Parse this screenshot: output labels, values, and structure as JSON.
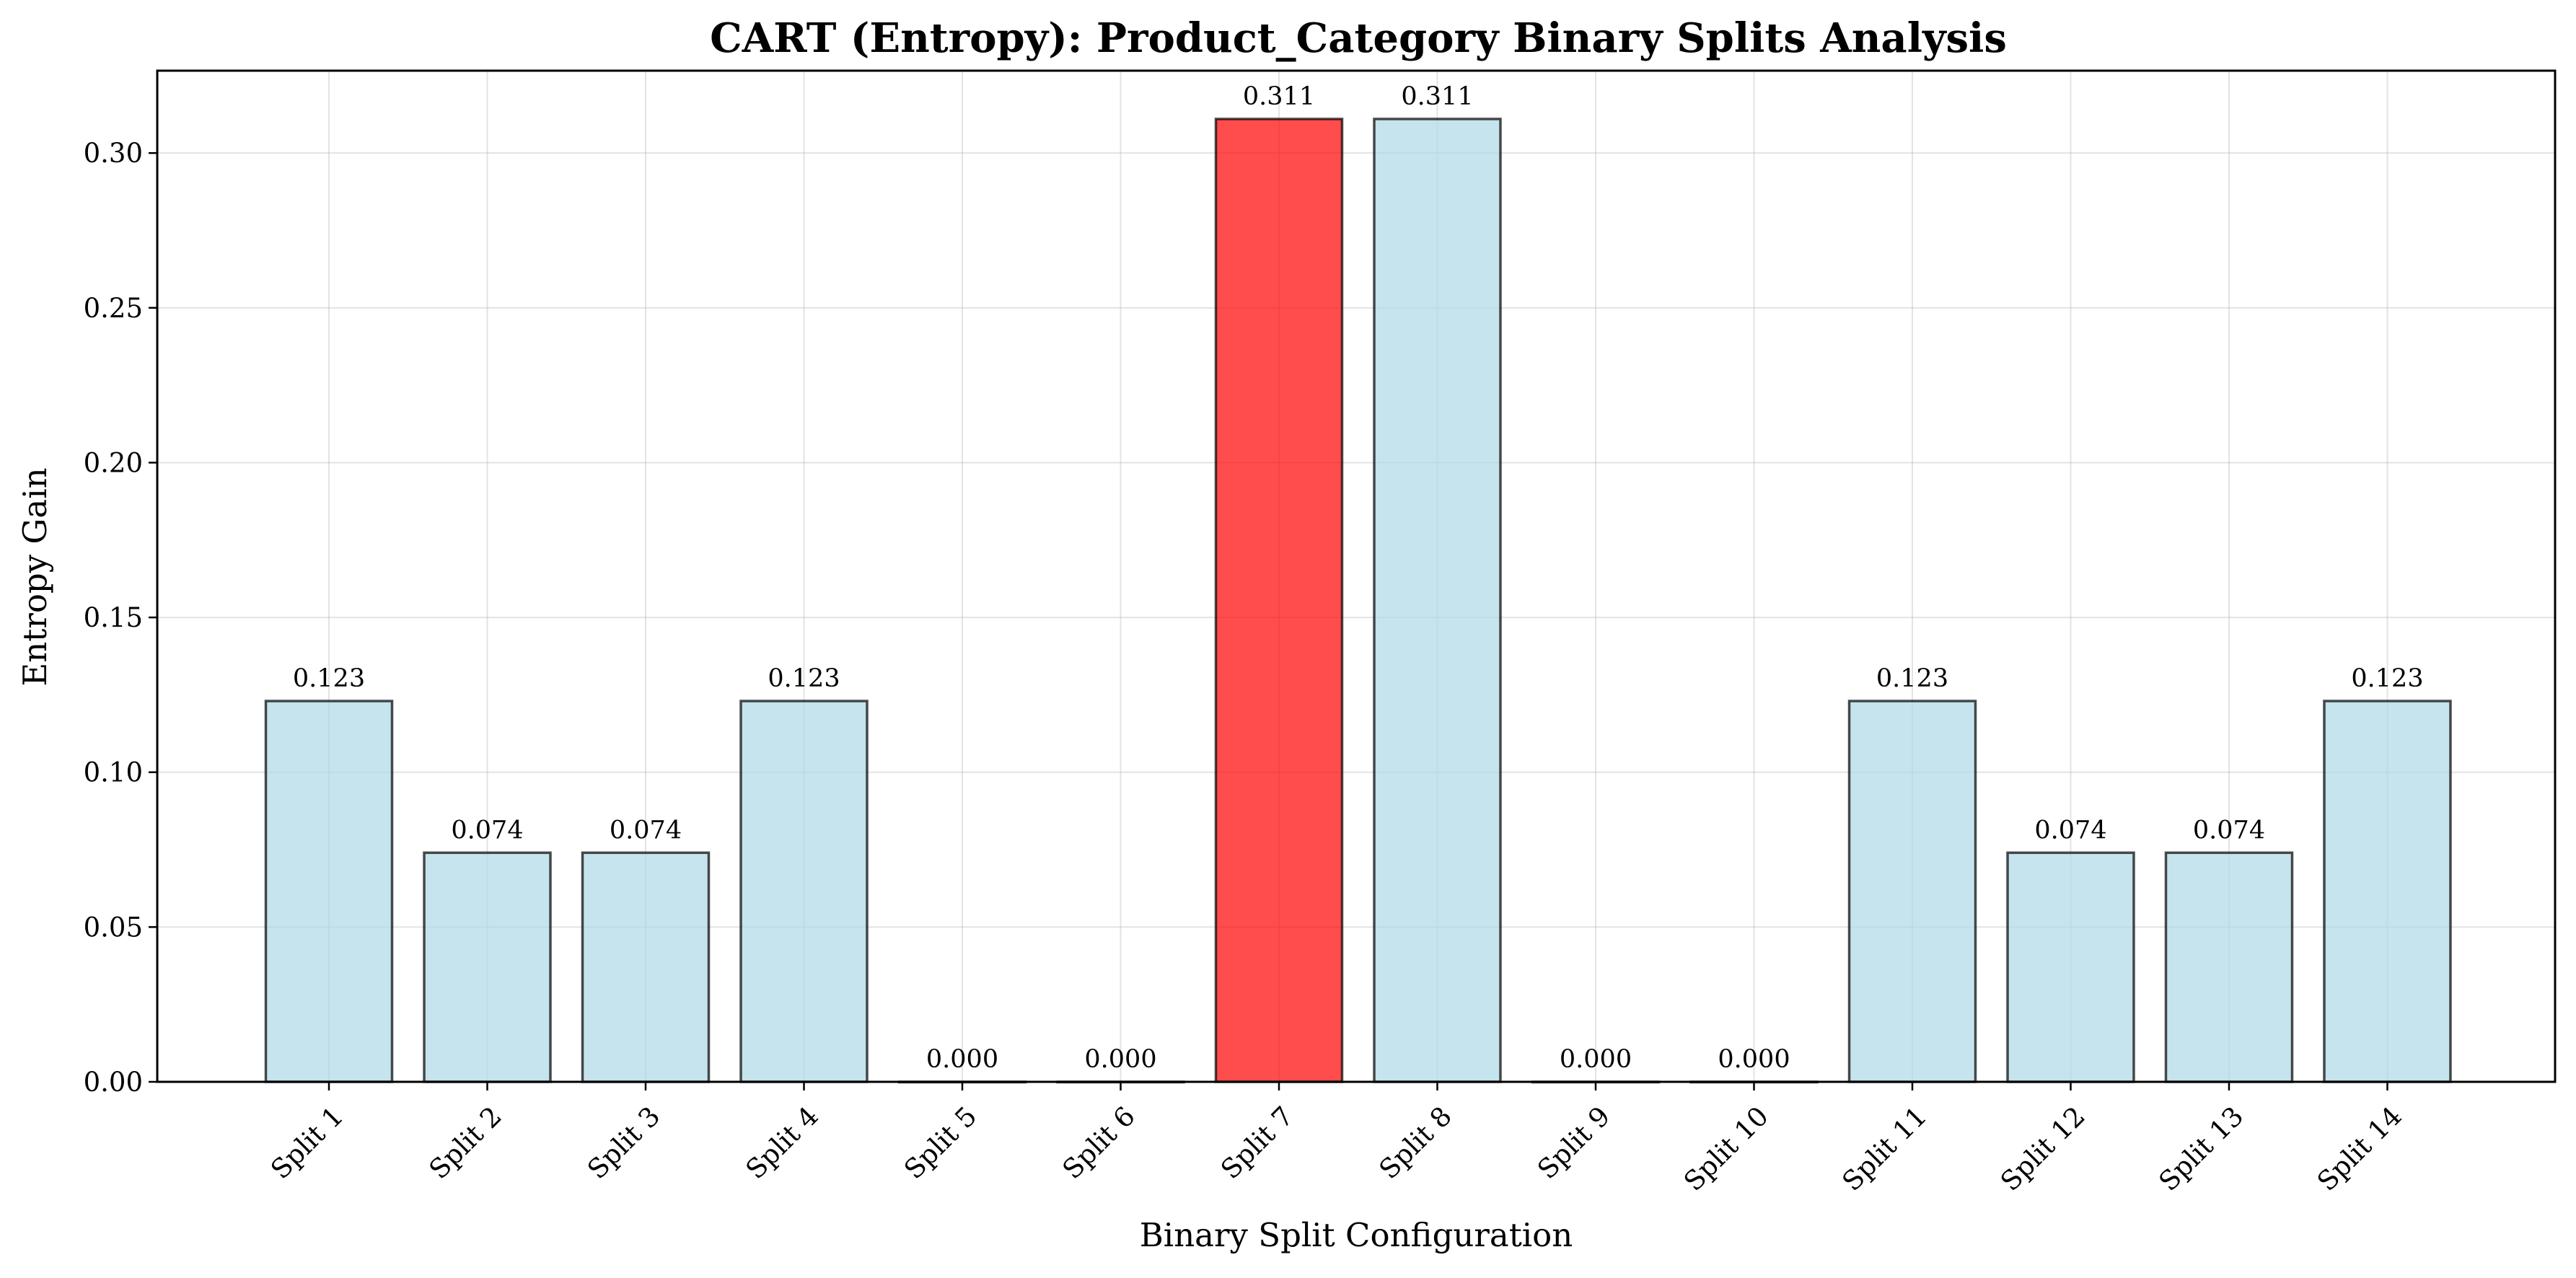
{
  "chart_data": {
    "type": "bar",
    "title": "CART (Entropy): Product_Category Binary Splits Analysis",
    "xlabel": "Binary Split Configuration",
    "ylabel": "Entropy Gain",
    "categories": [
      "Split 1",
      "Split 2",
      "Split 3",
      "Split 4",
      "Split 5",
      "Split 6",
      "Split 7",
      "Split 8",
      "Split 9",
      "Split 10",
      "Split 11",
      "Split 12",
      "Split 13",
      "Split 14"
    ],
    "values": [
      0.123,
      0.074,
      0.074,
      0.123,
      0.0,
      0.0,
      0.311,
      0.311,
      0.0,
      0.0,
      0.123,
      0.074,
      0.074,
      0.123
    ],
    "value_labels": [
      "0.123",
      "0.074",
      "0.074",
      "0.123",
      "0.000",
      "0.000",
      "0.311",
      "0.311",
      "0.000",
      "0.000",
      "0.123",
      "0.074",
      "0.074",
      "0.123"
    ],
    "highlight_index": 6,
    "yticks": [
      0.0,
      0.05,
      0.1,
      0.15,
      0.2,
      0.25,
      0.3
    ],
    "ytick_labels": [
      "0.00",
      "0.05",
      "0.10",
      "0.15",
      "0.20",
      "0.25",
      "0.30"
    ],
    "ylim": [
      0,
      0.3266
    ],
    "grid": true,
    "legend": false,
    "colors": {
      "bar": "#add8e6",
      "highlight": "#ff0000",
      "bar_edge": "#000000",
      "grid": "#b0b0b0"
    }
  }
}
